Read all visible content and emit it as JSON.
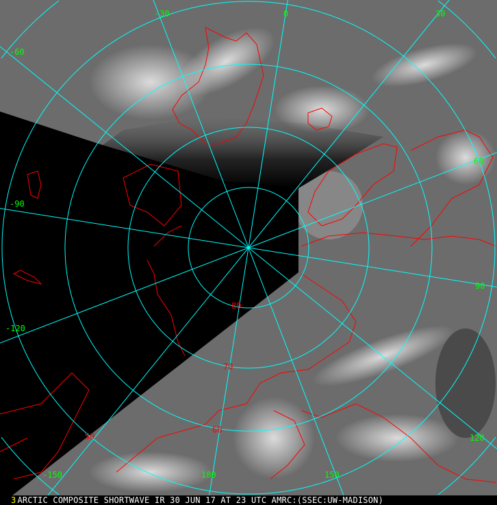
{
  "map": {
    "projection": "polar stereographic (north pole)",
    "colors": {
      "grid": "#00ffff",
      "coast": "#ff0000",
      "lon_label": "#00ff00",
      "lat_label": "#ff0000",
      "no_data": "#000000"
    },
    "latitude_labels": [
      "80",
      "70",
      "60",
      "50"
    ],
    "longitude_labels": [
      {
        "lon": -30,
        "text": "-30"
      },
      {
        "lon": 0,
        "text": "0"
      },
      {
        "lon": 30,
        "text": "30"
      },
      {
        "lon": -60,
        "text": "-60"
      },
      {
        "lon": 60,
        "text": "60"
      },
      {
        "lon": -90,
        "text": "-90"
      },
      {
        "lon": 90,
        "text": "90"
      },
      {
        "lon": -120,
        "text": "-120"
      },
      {
        "lon": 120,
        "text": "120"
      },
      {
        "lon": -150,
        "text": "-150"
      },
      {
        "lon": 180,
        "text": "180"
      },
      {
        "lon": 150,
        "text": "150"
      }
    ]
  },
  "caption": {
    "frame_number": "3",
    "text": "ARCTIC COMPOSITE SHORTWAVE IR 30 JUN 17 AT 23 UTC AMRC:(SSEC:UW-MADISON)"
  }
}
